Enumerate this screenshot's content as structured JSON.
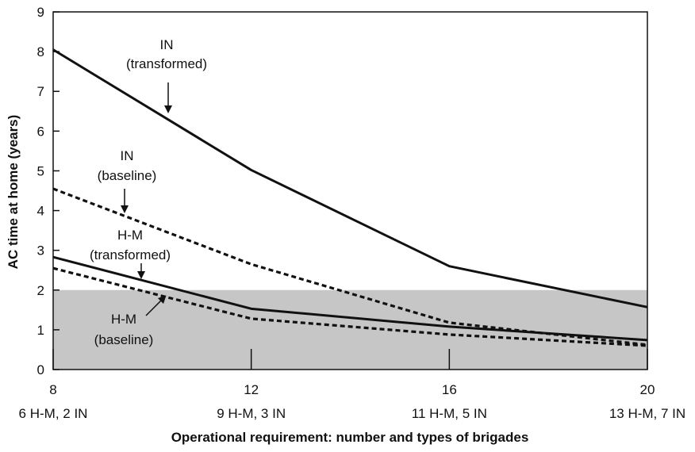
{
  "chart_data": {
    "type": "line",
    "title": "",
    "xlabel": "Operational requirement: number and types of brigades",
    "ylabel": "AC time at home (years)",
    "xlim": [
      8,
      20
    ],
    "ylim": [
      0,
      9
    ],
    "x_ticks": [
      {
        "value": 8,
        "label": "8",
        "sublabel": "6 H-M, 2 IN"
      },
      {
        "value": 12,
        "label": "12",
        "sublabel": "9 H-M, 3 IN"
      },
      {
        "value": 16,
        "label": "16",
        "sublabel": "11 H-M, 5 IN"
      },
      {
        "value": 20,
        "label": "20",
        "sublabel": "13 H-M, 7 IN"
      }
    ],
    "y_ticks": [
      "0",
      "1",
      "2",
      "3",
      "4",
      "5",
      "6",
      "7",
      "8",
      "9"
    ],
    "shaded_region": {
      "y_from": 0,
      "y_to": 2,
      "color": "#c6c6c6"
    },
    "series": [
      {
        "name": "IN (transformed)",
        "style": "solid",
        "x": [
          8,
          12,
          16,
          20
        ],
        "y": [
          8.05,
          5.02,
          2.6,
          1.57
        ]
      },
      {
        "name": "IN (baseline)",
        "style": "dashed",
        "x": [
          8,
          12,
          16,
          20
        ],
        "y": [
          4.55,
          2.65,
          1.18,
          0.62
        ]
      },
      {
        "name": "H-M (transformed)",
        "style": "solid",
        "x": [
          8,
          12,
          16,
          20
        ],
        "y": [
          2.83,
          1.53,
          1.08,
          0.74
        ]
      },
      {
        "name": "H-M (baseline)",
        "style": "dashed",
        "x": [
          8,
          12,
          16,
          20
        ],
        "y": [
          2.55,
          1.28,
          0.88,
          0.6
        ]
      }
    ],
    "annotations": [
      {
        "line1": "IN",
        "line2": "(transformed)"
      },
      {
        "line1": "IN",
        "line2": "(baseline)"
      },
      {
        "line1": "H-M",
        "line2": "(transformed)"
      },
      {
        "line1": "H-M",
        "line2": "(baseline)"
      }
    ]
  }
}
